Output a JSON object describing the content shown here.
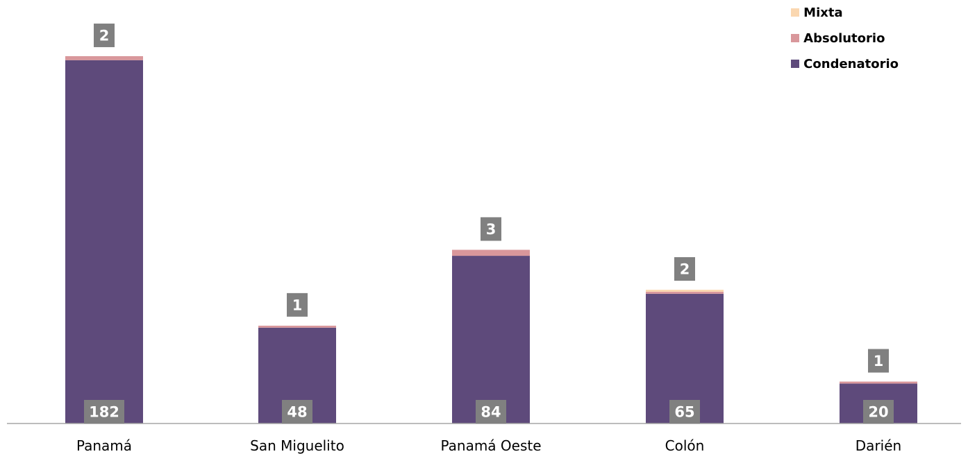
{
  "chart_data": {
    "type": "bar",
    "stacked": true,
    "categories": [
      "Panamá",
      "San Miguelito",
      "Panamá Oeste",
      "Colón",
      "Darién"
    ],
    "series": [
      {
        "name": "Condenatorio",
        "color": "#5e4a7b",
        "values": [
          182,
          48,
          84,
          65,
          20
        ]
      },
      {
        "name": "Absolutorio",
        "color": "#d9979b",
        "values": [
          2,
          1,
          3,
          1,
          1
        ]
      },
      {
        "name": "Mixta",
        "color": "#fad7b0",
        "values": [
          0,
          0,
          0,
          1,
          0
        ]
      }
    ],
    "data_labels": {
      "bottom": [
        "182",
        "48",
        "84",
        "65",
        "20"
      ],
      "top": [
        "2",
        "1",
        "3",
        "2",
        "1"
      ]
    },
    "title": "",
    "xlabel": "",
    "ylabel": "",
    "ylim": [
      0,
      192
    ],
    "grid": false,
    "legend_position": "top-right",
    "legend_order": [
      "Mixta",
      "Absolutorio",
      "Condenatorio"
    ],
    "label_box_color": "#808080"
  }
}
